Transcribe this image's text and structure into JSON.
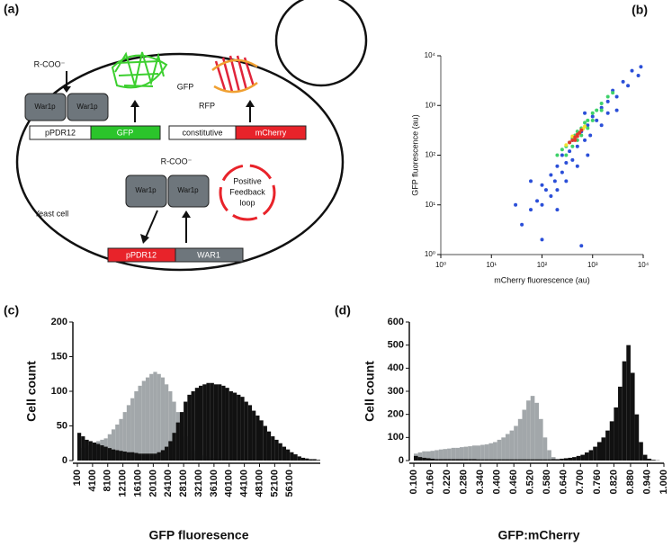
{
  "diagram": {
    "label": "(a)",
    "cell_label": "Yeast cell",
    "top_complex": {
      "ligand": "R-COO⁻",
      "proteins": [
        "War1p",
        "War1p"
      ]
    },
    "reporters": [
      "GFP",
      "RFP"
    ],
    "constructs": [
      [
        "pPDR12",
        "GFP"
      ],
      [
        "constitutive",
        "mCherry"
      ],
      [
        "pPDR12",
        "WAR1"
      ]
    ],
    "bottom_complex": {
      "ligand": "R-COO⁻",
      "proteins": [
        "War1p",
        "War1p"
      ]
    },
    "loop": [
      "Positive",
      "Feedback",
      "loop"
    ]
  },
  "chart_data": [
    {
      "type": "scatter",
      "label": "(b)",
      "xlabel": "mCherry fluorescence (au)",
      "ylabel": "GFP fluorescence (au)",
      "xscale": "log",
      "yscale": "log",
      "xlim": [
        1,
        10000
      ],
      "ylim": [
        1,
        10000
      ],
      "xticks": [
        {
          "value": 1,
          "label": "10⁰"
        },
        {
          "value": 10,
          "label": "10¹"
        },
        {
          "value": 100,
          "label": "10²"
        },
        {
          "value": 1000,
          "label": "10³"
        },
        {
          "value": 10000,
          "label": "10⁴"
        }
      ],
      "yticks": [
        {
          "value": 1,
          "label": "10⁰"
        },
        {
          "value": 10,
          "label": "10¹"
        },
        {
          "value": 100,
          "label": "10²"
        },
        {
          "value": 1000,
          "label": "10³"
        },
        {
          "value": 10000,
          "label": "10⁴"
        }
      ],
      "series": [
        {
          "color": "#2b4fd8",
          "x": [
            40,
            60,
            80,
            100,
            100,
            120,
            150,
            150,
            180,
            200,
            200,
            250,
            250,
            300,
            300,
            350,
            400,
            400,
            500,
            500,
            600,
            700,
            800,
            900,
            1000,
            1200,
            1500,
            1500,
            2000,
            2000,
            2500,
            3000,
            4000,
            5000,
            6000,
            8000,
            9000,
            60,
            30,
            200,
            800,
            3000,
            700,
            100,
            600
          ],
          "y": [
            4,
            8,
            12,
            10,
            25,
            20,
            15,
            40,
            30,
            20,
            60,
            45,
            100,
            70,
            30,
            120,
            80,
            200,
            150,
            60,
            300,
            200,
            400,
            250,
            600,
            500,
            900,
            400,
            1200,
            700,
            2000,
            1500,
            3000,
            2500,
            5000,
            4000,
            6000,
            30,
            10,
            8,
            100,
            800,
            700,
            2,
            1.5
          ]
        },
        {
          "color": "#3ed16a",
          "x": [
            200,
            250,
            300,
            350,
            400,
            450,
            500,
            600,
            700,
            800,
            1000,
            1200,
            1500,
            2000,
            300,
            400,
            500,
            600,
            800,
            1000,
            1500,
            2500
          ],
          "y": [
            100,
            130,
            150,
            180,
            220,
            250,
            300,
            350,
            450,
            500,
            700,
            800,
            1100,
            1500,
            100,
            150,
            200,
            250,
            350,
            500,
            800,
            1800
          ]
        },
        {
          "color": "#f2e230",
          "x": [
            300,
            650,
            700,
            400
          ],
          "y": [
            160,
            340,
            380,
            240
          ]
        },
        {
          "color": "#e23a2a",
          "x": [
            350,
            400,
            450,
            500,
            550,
            600,
            450,
            500
          ],
          "y": [
            180,
            200,
            230,
            260,
            280,
            320,
            200,
            240
          ]
        }
      ]
    },
    {
      "type": "histogram",
      "label": "(c)",
      "xlabel": "GFP fluoresence",
      "ylabel": "Cell count",
      "xlim": [
        100,
        64100
      ],
      "ylim": [
        0,
        200
      ],
      "yticks": [
        0,
        50,
        100,
        150,
        200
      ],
      "xticks": [
        100,
        4100,
        8100,
        12100,
        16100,
        20100,
        24100,
        28100,
        32100,
        36100,
        40100,
        44100,
        48100,
        52100,
        56100
      ],
      "bins": [
        100,
        1100,
        2100,
        3100,
        4100,
        5100,
        6100,
        7100,
        8100,
        9100,
        10100,
        11100,
        12100,
        13100,
        14100,
        15100,
        16100,
        17100,
        18100,
        19100,
        20100,
        21100,
        22100,
        23100,
        24100,
        25100,
        26100,
        27100,
        28100,
        29100,
        30100,
        31100,
        32100,
        33100,
        34100,
        35100,
        36100,
        37100,
        38100,
        39100,
        40100,
        41100,
        42100,
        43100,
        44100,
        45100,
        46100,
        47100,
        48100,
        49100,
        50100,
        51100,
        52100,
        53100,
        54100,
        55100,
        56100,
        57100,
        58100,
        59100,
        60100,
        61100,
        62100,
        63100,
        64100
      ],
      "series": [
        {
          "color": "#a2a7aa",
          "values": [
            15,
            18,
            20,
            22,
            25,
            28,
            30,
            32,
            38,
            45,
            52,
            60,
            70,
            80,
            90,
            100,
            108,
            115,
            120,
            125,
            128,
            125,
            120,
            110,
            100,
            85,
            70,
            50,
            35,
            22,
            15,
            10,
            8,
            6,
            5,
            4,
            3,
            3,
            2,
            2,
            1,
            1,
            1,
            1,
            1,
            0,
            0,
            0,
            0,
            0,
            0,
            0,
            0,
            0,
            0,
            0,
            0,
            0,
            0,
            0,
            0,
            0,
            0,
            0
          ]
        },
        {
          "color": "#111111",
          "values": [
            40,
            35,
            30,
            28,
            26,
            24,
            22,
            20,
            18,
            16,
            15,
            14,
            13,
            12,
            12,
            11,
            10,
            10,
            10,
            10,
            10,
            12,
            15,
            20,
            28,
            40,
            55,
            70,
            85,
            95,
            100,
            105,
            108,
            110,
            112,
            112,
            110,
            110,
            108,
            105,
            100,
            98,
            95,
            92,
            85,
            80,
            72,
            65,
            58,
            50,
            42,
            35,
            30,
            25,
            20,
            16,
            12,
            9,
            6,
            4,
            3,
            2,
            2,
            1
          ]
        }
      ]
    },
    {
      "type": "histogram",
      "label": "(d)",
      "xlabel": "GFP:mCherry",
      "ylabel": "Cell count",
      "xlim": [
        0.1,
        1.0
      ],
      "ylim": [
        0,
        600
      ],
      "yticks": [
        0,
        100,
        200,
        300,
        400,
        500,
        600
      ],
      "xticks": [
        {
          "value": 0.1,
          "label": "0.100"
        },
        {
          "value": 0.16,
          "label": "0.160"
        },
        {
          "value": 0.22,
          "label": "0.220"
        },
        {
          "value": 0.28,
          "label": "0.280"
        },
        {
          "value": 0.34,
          "label": "0.340"
        },
        {
          "value": 0.4,
          "label": "0.400"
        },
        {
          "value": 0.46,
          "label": "0.460"
        },
        {
          "value": 0.52,
          "label": "0.520"
        },
        {
          "value": 0.58,
          "label": "0.580"
        },
        {
          "value": 0.64,
          "label": "0.640"
        },
        {
          "value": 0.7,
          "label": "0.700"
        },
        {
          "value": 0.76,
          "label": "0.760"
        },
        {
          "value": 0.82,
          "label": "0.820"
        },
        {
          "value": 0.88,
          "label": "0.880"
        },
        {
          "value": 0.94,
          "label": "0.940"
        },
        {
          "value": 1.0,
          "label": "1.000"
        }
      ],
      "bins": [
        0.1,
        0.115,
        0.13,
        0.145,
        0.16,
        0.175,
        0.19,
        0.205,
        0.22,
        0.235,
        0.25,
        0.265,
        0.28,
        0.295,
        0.31,
        0.325,
        0.34,
        0.355,
        0.37,
        0.385,
        0.4,
        0.415,
        0.43,
        0.445,
        0.46,
        0.475,
        0.49,
        0.505,
        0.52,
        0.535,
        0.55,
        0.565,
        0.58,
        0.595,
        0.61,
        0.625,
        0.64,
        0.655,
        0.67,
        0.685,
        0.7,
        0.715,
        0.73,
        0.745,
        0.76,
        0.775,
        0.79,
        0.805,
        0.82,
        0.835,
        0.85,
        0.865,
        0.88,
        0.895,
        0.91,
        0.925,
        0.94,
        0.955,
        0.97,
        0.985,
        1.0
      ],
      "series": [
        {
          "color": "#a2a7aa",
          "values": [
            30,
            35,
            40,
            40,
            42,
            45,
            48,
            50,
            52,
            55,
            55,
            58,
            60,
            62,
            65,
            65,
            68,
            70,
            75,
            80,
            90,
            100,
            115,
            130,
            150,
            180,
            220,
            260,
            280,
            250,
            180,
            100,
            45,
            15,
            5,
            0,
            0,
            0,
            0,
            0,
            0,
            0,
            0,
            0,
            0,
            0,
            0,
            0,
            0,
            0,
            0,
            0,
            0,
            0,
            0,
            0,
            0,
            0,
            0,
            0
          ]
        },
        {
          "color": "#111111",
          "values": [
            20,
            15,
            12,
            10,
            8,
            6,
            6,
            6,
            6,
            6,
            6,
            6,
            6,
            6,
            6,
            5,
            5,
            5,
            5,
            5,
            5,
            5,
            5,
            5,
            5,
            5,
            5,
            5,
            5,
            5,
            5,
            5,
            5,
            6,
            6,
            8,
            10,
            12,
            15,
            20,
            25,
            35,
            45,
            60,
            80,
            100,
            130,
            170,
            230,
            320,
            430,
            500,
            380,
            200,
            80,
            25,
            8,
            3,
            1,
            0
          ]
        }
      ]
    }
  ]
}
